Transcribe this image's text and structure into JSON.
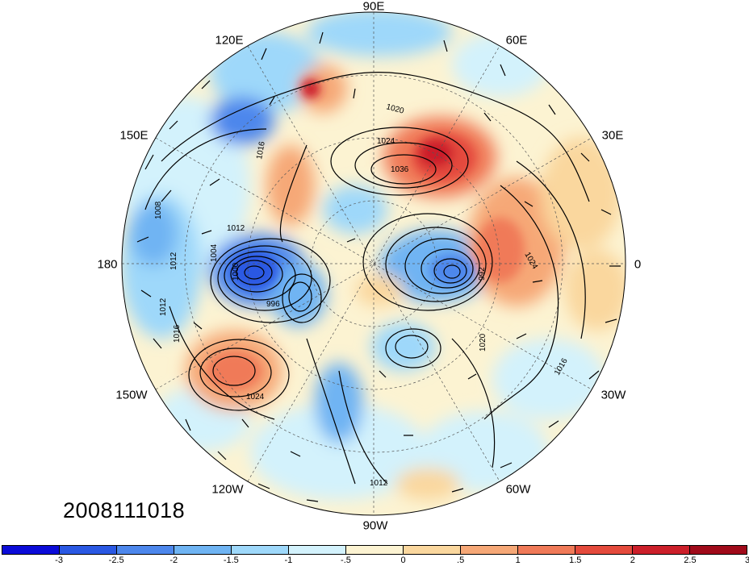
{
  "timestamp": "2008111018",
  "longitude_labels": {
    "lon_90e": "90E",
    "lon_120e": "120E",
    "lon_60e": "60E",
    "lon_150e": "150E",
    "lon_30e": "30E",
    "lon_180": "180",
    "lon_0": "0",
    "lon_150w": "150W",
    "lon_30w": "30W",
    "lon_120w": "120W",
    "lon_60w": "60W",
    "lon_90w": "90W"
  },
  "contour_labels": [
    "1020",
    "1024",
    "1036",
    "1012",
    "1016",
    "1008",
    "1004",
    "1000",
    "996",
    "992",
    "1012",
    "1024",
    "1016",
    "1012",
    "1012",
    "1020",
    "1024",
    "1016",
    "1012"
  ],
  "colorbar": {
    "colors": [
      "#0b0bd8",
      "#2a58e3",
      "#4d87ec",
      "#6fb4f3",
      "#9ed8fa",
      "#d3f2fc",
      "#fcf3d2",
      "#fad79e",
      "#f6a877",
      "#f07a58",
      "#e44a3c",
      "#cc1f2a",
      "#a00a1a"
    ],
    "labels": [
      "-3",
      "-2.5",
      "-2",
      "-1.5",
      "-1",
      "-.5",
      "0",
      ".5",
      "1",
      "1.5",
      "2",
      "2.5",
      "3"
    ]
  }
}
